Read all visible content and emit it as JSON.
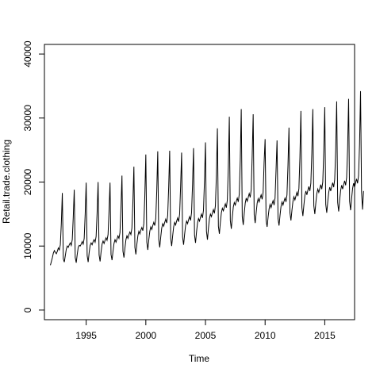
{
  "chart_data": {
    "type": "line",
    "title": "",
    "xlabel": "Time",
    "ylabel": "Retail.trade.clothing",
    "xlim": [
      1991.5,
      2017.5
    ],
    "ylim": [
      -1500,
      41500
    ],
    "xticks": [
      1995,
      2000,
      2005,
      2010,
      2015
    ],
    "yticks": [
      0,
      10000,
      20000,
      30000,
      40000
    ],
    "grid": false,
    "legend": "none",
    "line_color": "#000000",
    "frequency": "monthly",
    "series": [
      {
        "x_start": 1992.0,
        "x_step": 0.0833333,
        "values": [
          7000,
          7600,
          8200,
          8900,
          9300,
          9000,
          8800,
          9200,
          9700,
          9400,
          10200,
          13500,
          18300,
          8000,
          7500,
          8500,
          9500,
          10000,
          9800,
          10200,
          10500,
          10100,
          11000,
          14500,
          18800,
          8200,
          7400,
          8700,
          9800,
          10100,
          10000,
          10300,
          10700,
          10300,
          11200,
          15000,
          19900,
          8500,
          7500,
          9000,
          10100,
          10500,
          10200,
          10700,
          11000,
          10600,
          11500,
          15200,
          20000,
          8600,
          7600,
          9100,
          10300,
          10800,
          10400,
          10900,
          11300,
          10900,
          11800,
          15500,
          19900,
          8700,
          7800,
          9200,
          10400,
          11000,
          10600,
          11100,
          11600,
          11200,
          12100,
          16000,
          21000,
          9200,
          8200,
          9700,
          11000,
          11600,
          11200,
          11800,
          12200,
          11800,
          12800,
          16900,
          22400,
          9800,
          8700,
          10300,
          11600,
          12300,
          11900,
          12500,
          12900,
          12400,
          13500,
          17900,
          24300,
          10600,
          9400,
          11000,
          12300,
          13000,
          12600,
          13200,
          13700,
          13200,
          14300,
          18600,
          24800,
          11000,
          9800,
          11400,
          12800,
          13500,
          13100,
          13700,
          14200,
          13600,
          14800,
          19200,
          24900,
          11200,
          10000,
          11600,
          13000,
          13700,
          13300,
          13900,
          14400,
          13800,
          15000,
          19300,
          24600,
          11400,
          10200,
          11800,
          13200,
          13900,
          13500,
          14100,
          14600,
          14000,
          15200,
          19600,
          25300,
          11700,
          10500,
          12200,
          13600,
          14300,
          13900,
          14500,
          15000,
          14400,
          15600,
          20200,
          26200,
          12300,
          11000,
          12800,
          14300,
          15000,
          14600,
          15200,
          15700,
          15100,
          16300,
          21100,
          28400,
          13100,
          11900,
          13700,
          15200,
          15900,
          15500,
          16100,
          16600,
          16000,
          17200,
          22400,
          30200,
          14000,
          12700,
          14500,
          16100,
          16800,
          16400,
          17000,
          17500,
          16900,
          18100,
          23400,
          31400,
          14600,
          13300,
          15100,
          16700,
          17500,
          17000,
          17600,
          18200,
          17600,
          18800,
          24100,
          30600,
          14900,
          13600,
          15200,
          16700,
          17400,
          16900,
          17500,
          18000,
          17300,
          18400,
          23100,
          26700,
          14000,
          13000,
          14500,
          15800,
          16500,
          16000,
          16600,
          17100,
          16400,
          17500,
          21900,
          26500,
          14300,
          13200,
          14800,
          16200,
          16900,
          16400,
          17000,
          17500,
          16900,
          18000,
          22600,
          28500,
          15200,
          14000,
          15600,
          17000,
          17700,
          17200,
          17800,
          18400,
          17800,
          19000,
          23800,
          31100,
          16000,
          14700,
          16400,
          17900,
          18600,
          18000,
          18700,
          19300,
          18600,
          19800,
          24500,
          31400,
          16300,
          15000,
          16700,
          18200,
          18900,
          18400,
          19000,
          19600,
          18900,
          20000,
          24700,
          31700,
          16500,
          15200,
          16900,
          18400,
          19200,
          18600,
          19300,
          19900,
          19200,
          20400,
          25000,
          32600,
          16800,
          15400,
          17200,
          18700,
          19500,
          18900,
          19600,
          20200,
          19500,
          20700,
          25300,
          33000,
          17000,
          15600,
          17400,
          19000,
          19800,
          19200,
          19900,
          20500,
          19800,
          21000,
          25900,
          34200,
          18500,
          15700,
          18600
        ]
      }
    ]
  }
}
